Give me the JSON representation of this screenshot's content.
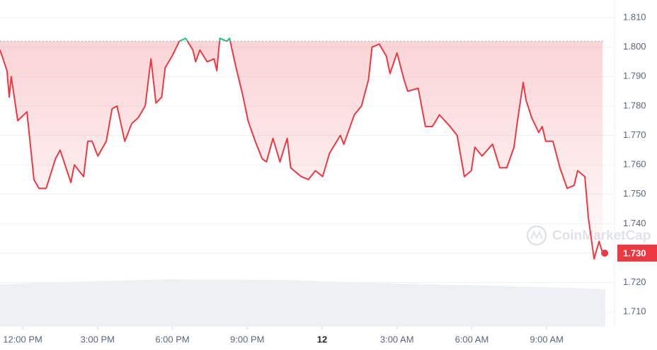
{
  "chart_data": {
    "type": "line",
    "watermark": "CoinMarketCap",
    "baseline": 1.802,
    "current_price": {
      "value": 1.73,
      "label": "1.730"
    },
    "xlim": [
      11.09,
      35.35
    ],
    "ylim": [
      1.705,
      1.816
    ],
    "grid": true,
    "up_color": "#16c784",
    "down_color": "#ea3943",
    "xticks": [
      {
        "value": 12,
        "label": "12:00 PM"
      },
      {
        "value": 15,
        "label": "3:00 PM"
      },
      {
        "value": 18,
        "label": "6:00 PM"
      },
      {
        "value": 21,
        "label": "9:00 PM"
      },
      {
        "value": 24,
        "label": "12"
      },
      {
        "value": 27,
        "label": "3:00 AM"
      },
      {
        "value": 30,
        "label": "6:00 AM"
      },
      {
        "value": 33,
        "label": "9:00 AM"
      }
    ],
    "yticks": [
      {
        "value": 1.71,
        "label": "1.710"
      },
      {
        "value": 1.72,
        "label": "1.720"
      },
      {
        "value": 1.73,
        "label": "1.730"
      },
      {
        "value": 1.74,
        "label": "1.740"
      },
      {
        "value": 1.75,
        "label": "1.750"
      },
      {
        "value": 1.76,
        "label": "1.760"
      },
      {
        "value": 1.77,
        "label": "1.770"
      },
      {
        "value": 1.78,
        "label": "1.780"
      },
      {
        "value": 1.79,
        "label": "1.790"
      },
      {
        "value": 1.8,
        "label": "1.800"
      },
      {
        "value": 1.81,
        "label": "1.810"
      }
    ],
    "x": [
      11.09,
      11.37,
      11.46,
      11.54,
      11.8,
      12.17,
      12.45,
      12.65,
      12.94,
      13.31,
      13.5,
      13.93,
      14.07,
      14.44,
      14.61,
      14.78,
      15.01,
      15.35,
      15.58,
      15.78,
      16.09,
      16.37,
      16.63,
      16.91,
      17.14,
      17.34,
      17.57,
      17.71,
      17.99,
      18.28,
      18.53,
      18.82,
      18.93,
      19.1,
      19.39,
      19.67,
      19.78,
      19.9,
      20.18,
      20.29,
      20.55,
      20.81,
      21.03,
      21.32,
      21.6,
      21.77,
      22.03,
      22.31,
      22.6,
      22.74,
      23.16,
      23.45,
      23.73,
      24.02,
      24.3,
      24.73,
      24.87,
      25.29,
      25.58,
      25.86,
      26.0,
      26.29,
      26.57,
      26.72,
      27.0,
      27.28,
      27.43,
      27.85,
      28.14,
      28.42,
      28.7,
      29.13,
      29.41,
      29.7,
      29.98,
      30.12,
      30.41,
      30.83,
      31.12,
      31.4,
      31.69,
      31.83,
      32.06,
      32.17,
      32.4,
      32.68,
      32.82,
      32.96,
      33.25,
      33.53,
      33.82,
      34.1,
      34.24,
      34.53,
      34.67,
      34.9,
      35.1,
      35.24
    ],
    "values": [
      1.799,
      1.792,
      1.783,
      1.79,
      1.775,
      1.778,
      1.755,
      1.752,
      1.752,
      1.762,
      1.765,
      1.754,
      1.76,
      1.756,
      1.768,
      1.768,
      1.763,
      1.768,
      1.779,
      1.78,
      1.768,
      1.774,
      1.776,
      1.78,
      1.796,
      1.781,
      1.783,
      1.793,
      1.797,
      1.802,
      1.803,
      1.799,
      1.795,
      1.799,
      1.795,
      1.796,
      1.792,
      1.803,
      1.802,
      1.803,
      1.793,
      1.784,
      1.775,
      1.768,
      1.762,
      1.761,
      1.769,
      1.761,
      1.769,
      1.759,
      1.756,
      1.755,
      1.758,
      1.756,
      1.764,
      1.77,
      1.767,
      1.777,
      1.78,
      1.789,
      1.8,
      1.801,
      1.797,
      1.791,
      1.798,
      1.789,
      1.785,
      1.786,
      1.773,
      1.773,
      1.777,
      1.773,
      1.77,
      1.756,
      1.758,
      1.766,
      1.763,
      1.767,
      1.759,
      1.759,
      1.766,
      1.775,
      1.788,
      1.782,
      1.776,
      1.771,
      1.773,
      1.768,
      1.768,
      1.759,
      1.752,
      1.753,
      1.758,
      1.756,
      1.742,
      1.728,
      1.734,
      1.73
    ]
  }
}
